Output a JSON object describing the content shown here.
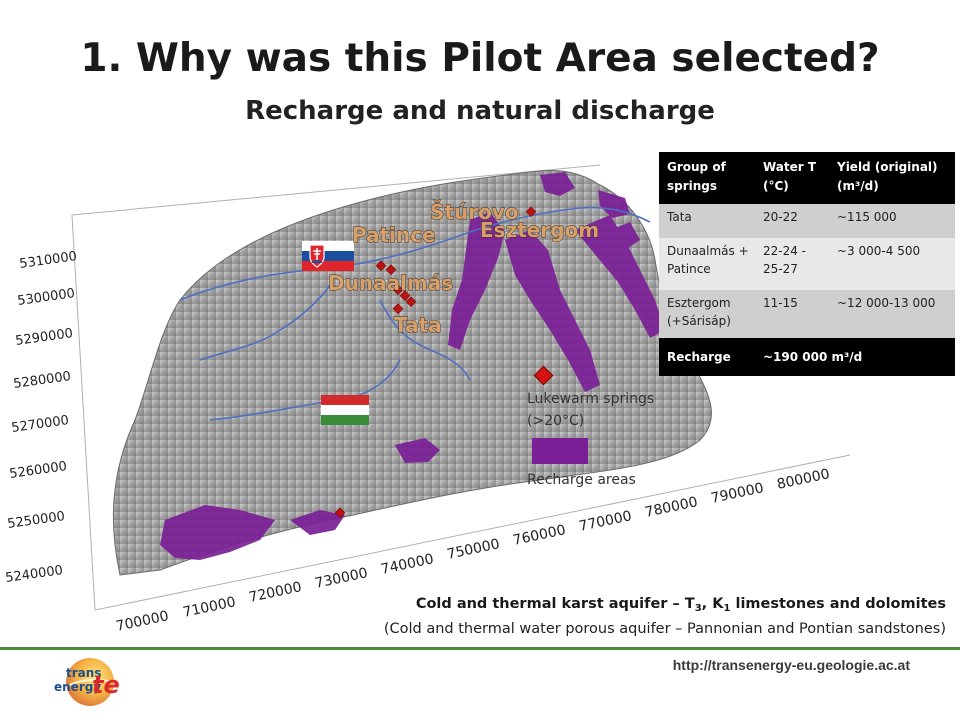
{
  "title": "1. Why was this Pilot Area selected?",
  "subtitle": "Recharge and natural discharge",
  "map": {
    "place_labels": [
      "Štúrovo",
      "Patince",
      "Esztergom",
      "Dunaalmás",
      "Tata"
    ],
    "y_ticks": [
      "5310000",
      "5300000",
      "5290000",
      "5280000",
      "5270000",
      "5260000",
      "5250000",
      "5240000"
    ],
    "x_ticks": [
      "700000",
      "710000",
      "720000",
      "730000",
      "740000",
      "750000",
      "760000",
      "770000",
      "780000",
      "790000",
      "800000"
    ],
    "flags": [
      "flag-slovakia-icon",
      "flag-hungary-icon"
    ],
    "colors": {
      "recharge": "#7a1f96",
      "spring": "#d41414",
      "terrain": "#a9a9a9",
      "river": "#4f6fc2",
      "label_fill": "#d7a06b"
    }
  },
  "table": {
    "headers": [
      "Group of springs",
      "Water T (°C)",
      "Yield (original) (m³/d)"
    ],
    "rows": [
      [
        "Tata",
        "20-22",
        "~115 000"
      ],
      [
        "Dunaalmás + Patince",
        "22-24  - 25-27",
        "~3 000-4 500"
      ],
      [
        "Esztergom (+Sárisáp)",
        "11-15",
        "~12 000-13 000"
      ]
    ],
    "recharge": {
      "label": "Recharge",
      "value": "~190 000 m³/d"
    }
  },
  "legend": {
    "springs_line1": "Lukewarm springs",
    "springs_line2": "(>20°C)",
    "recharge": "Recharge areas"
  },
  "caption": {
    "line1_prefix": "Cold and thermal karst aquifer – T",
    "line1_sub1": "3",
    "line1_mid": ", K",
    "line1_sub2": "1",
    "line1_suffix": " limestones and dolomites",
    "line2": "(Cold and thermal water porous aquifer – Pannonian and Pontian sandstones)"
  },
  "footer": {
    "url": "http://transenergy-eu.geologie.ac.at",
    "logo_line1": "trans",
    "logo_line2": "energy",
    "logo_mark": "te"
  }
}
